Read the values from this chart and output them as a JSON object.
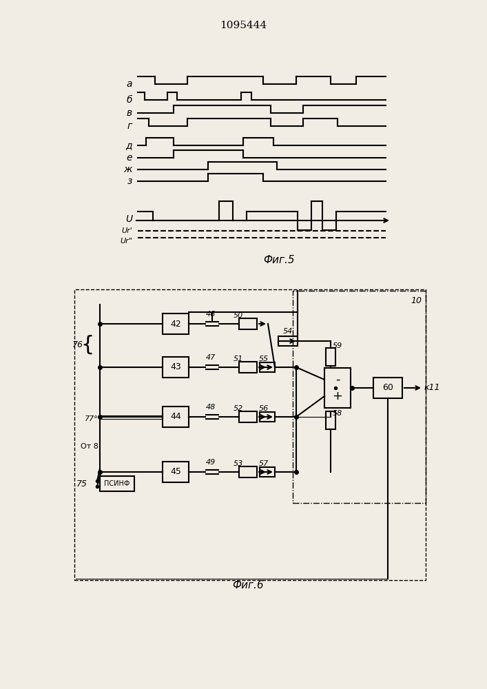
{
  "title": "1095444",
  "fig5_label": "Фиг.5",
  "fig6_label": "Фиг.6",
  "lw": 1.5,
  "bg_color": "#f2ede4",
  "line_color": "#000000"
}
